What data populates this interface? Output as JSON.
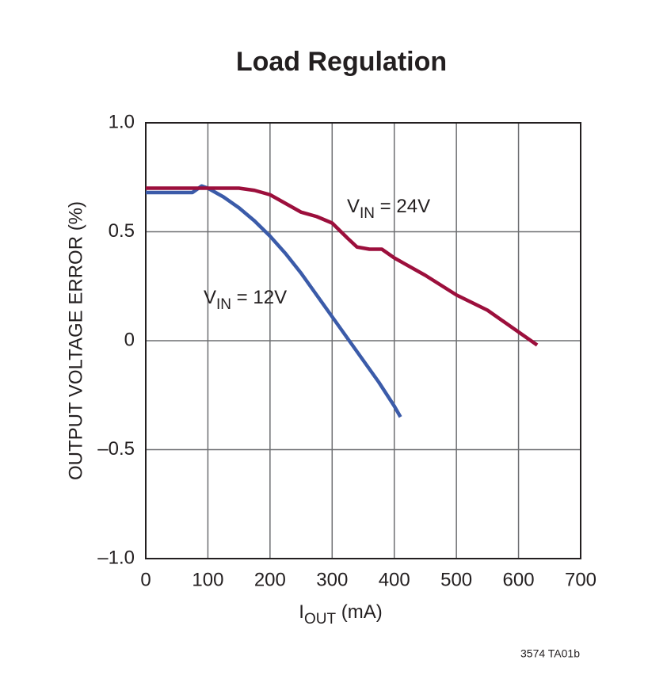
{
  "chart_data": {
    "type": "line",
    "title": "Load Regulation",
    "x_label": [
      "I",
      "OUT",
      " (mA)"
    ],
    "y_label": "OUTPUT VOLTAGE ERROR (%)",
    "footnote": "3574 TA01b",
    "xlim": [
      0,
      700
    ],
    "xticks": [
      0,
      100,
      200,
      300,
      400,
      500,
      600,
      700
    ],
    "ylim": [
      -1,
      1
    ],
    "yticks": [
      {
        "value": -1,
        "label": "–1.0"
      },
      {
        "value": -0.5,
        "label": "–0.5"
      },
      0,
      0.5,
      {
        "value": 1,
        "label": "1.0"
      }
    ],
    "grid": true,
    "series": [
      {
        "name": [
          "V",
          "IN",
          " = 12V"
        ],
        "color": "#3b5ba9",
        "x": [
          0,
          50,
          75,
          90,
          100,
          125,
          150,
          175,
          200,
          225,
          250,
          275,
          300,
          325,
          350,
          375,
          400,
          410
        ],
        "values": [
          0.68,
          0.68,
          0.68,
          0.71,
          0.7,
          0.66,
          0.61,
          0.55,
          0.48,
          0.4,
          0.31,
          0.21,
          0.11,
          0.01,
          -0.09,
          -0.19,
          -0.3,
          -0.35
        ]
      },
      {
        "name": [
          "V",
          "IN",
          " = 24V"
        ],
        "color": "#9c0f3c",
        "x": [
          0,
          100,
          150,
          175,
          200,
          225,
          250,
          275,
          300,
          325,
          340,
          360,
          380,
          400,
          450,
          500,
          550,
          600,
          630
        ],
        "values": [
          0.7,
          0.7,
          0.7,
          0.69,
          0.67,
          0.63,
          0.59,
          0.57,
          0.54,
          0.47,
          0.43,
          0.42,
          0.42,
          0.38,
          0.3,
          0.21,
          0.14,
          0.04,
          -0.02
        ]
      }
    ]
  }
}
